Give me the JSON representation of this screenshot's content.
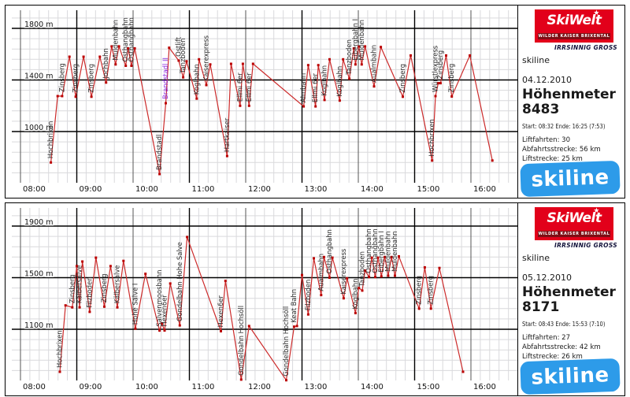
{
  "panels": [
    {
      "skiwelt_logo": {
        "name": "SkiWelt",
        "subtitle": "WILDER KAISER BRIXENTAL",
        "tagline": "IRRSINNIG GROSS",
        "star_icon": "★",
        "bg": "#e2001a"
      },
      "site_label": "skiline",
      "date": "04.12.2010",
      "hm_label": "Höhenmeter",
      "hm_value": "8483",
      "session": "Start: 08:32 Ende: 16:25 (7:53)",
      "stats": [
        "Liftfahrten: 30",
        "Abfahrtsstrecke: 56 km",
        "Liftstrecke: 25 km"
      ],
      "skiline_logo": {
        "text": "skiline",
        "bg": "#2d9be9"
      }
    },
    {
      "skiwelt_logo": {
        "name": "SkiWelt",
        "subtitle": "WILDER KAISER BRIXENTAL",
        "tagline": "IRRSINNIG GROSS",
        "star_icon": "★",
        "bg": "#e2001a"
      },
      "site_label": "skiline",
      "date": "05.12.2010",
      "hm_label": "Höhenmeter",
      "hm_value": "8171",
      "session": "Start: 08:43 Ende: 15:53 (7:10)",
      "stats": [
        "Liftfahrten: 27",
        "Abfahrtsstrecke: 42 km",
        "Liftstrecke: 26 km"
      ],
      "skiline_logo": {
        "text": "skiline",
        "bg": "#2d9be9"
      }
    }
  ],
  "chart_data": [
    {
      "type": "line",
      "title": "Höhenmeter 04.12.2010",
      "x_ticks": [
        "08:00",
        "09:00",
        "10:00",
        "11:00",
        "12:00",
        "13:00",
        "14:00",
        "15:00",
        "16:00"
      ],
      "y_ticks": [
        {
          "label": "1800 m",
          "value": 1800
        },
        {
          "label": "1400 m",
          "value": 1400
        },
        {
          "label": "1000 m",
          "value": 1000
        }
      ],
      "x_range_hours": [
        8.0,
        16.8
      ],
      "y_minor_step_m": 80,
      "x_minor_step_min": 10,
      "grid_minor": "#d9d9dc",
      "line_color": "#cc2a2a",
      "point_color": "#bb0000",
      "label_color": "#2b2b2b",
      "highlight_label_color": "#8a2be2",
      "points": [
        [
          8.54,
          760,
          "Hochbrixen"
        ],
        [
          8.66,
          1275
        ],
        [
          8.74,
          1275,
          "Zinsberg"
        ],
        [
          8.87,
          1580
        ],
        [
          8.98,
          1270,
          "Zinsberg"
        ],
        [
          9.12,
          1580
        ],
        [
          9.26,
          1270,
          "Zinsberg"
        ],
        [
          9.41,
          1580
        ],
        [
          9.52,
          1380,
          "Jochbahn"
        ],
        [
          9.62,
          1660
        ],
        [
          9.69,
          1520,
          "Muldenbahn"
        ],
        [
          9.75,
          1660
        ],
        [
          9.87,
          1510,
          "Osthangbahn"
        ],
        [
          9.91,
          1645
        ],
        [
          9.97,
          1510,
          "Osthangbahn"
        ],
        [
          10.03,
          1645
        ],
        [
          10.47,
          670,
          "Brandstadl I"
        ],
        [
          10.58,
          1220,
          "Brandstadl II",
          "#8a2be2"
        ],
        [
          10.64,
          1650
        ],
        [
          10.81,
          1550,
          "Ostlift"
        ],
        [
          10.89,
          1420,
          "Tanzboden"
        ],
        [
          10.95,
          1545
        ],
        [
          11.13,
          1255,
          "Koglbahn"
        ],
        [
          11.17,
          1560
        ],
        [
          11.3,
          1360,
          "Kaiserexpress"
        ],
        [
          11.37,
          1520
        ],
        [
          11.67,
          810,
          "Hartkaiser"
        ],
        [
          11.74,
          1525
        ],
        [
          11.9,
          1200,
          "Ellmi 6er"
        ],
        [
          11.95,
          1525
        ],
        [
          12.06,
          1200,
          "Ellmi 6er"
        ],
        [
          12.13,
          1525
        ],
        [
          13.03,
          1195,
          "Almbahn"
        ],
        [
          13.11,
          1515
        ],
        [
          13.24,
          1195,
          "Ellmi 6er"
        ],
        [
          13.29,
          1515
        ],
        [
          13.4,
          1245,
          "Koglbahn"
        ],
        [
          13.49,
          1560
        ],
        [
          13.67,
          1240,
          "Koglbahn"
        ],
        [
          13.73,
          1560
        ],
        [
          13.84,
          1410,
          "Tanzboden"
        ],
        [
          13.92,
          1645
        ],
        [
          13.95,
          1520,
          "Eibergbahn I"
        ],
        [
          14.01,
          1660
        ],
        [
          14.06,
          1520,
          "Muldenbahn"
        ],
        [
          14.12,
          1660
        ],
        [
          14.28,
          1350,
          "Aualmbahn"
        ],
        [
          14.4,
          1655
        ],
        [
          14.79,
          1270,
          "Zinsberg"
        ],
        [
          14.93,
          1590
        ],
        [
          15.31,
          775,
          "Hochbrixen"
        ],
        [
          15.37,
          1275,
          "Würstlexpress"
        ],
        [
          15.42,
          1375
        ],
        [
          15.46,
          1375,
          "Zinsberg"
        ],
        [
          15.56,
          1590
        ],
        [
          15.66,
          1272,
          "Zinsberg"
        ],
        [
          15.98,
          1590
        ],
        [
          16.38,
          775
        ]
      ]
    },
    {
      "type": "line",
      "title": "Höhenmeter 05.12.2010",
      "x_ticks": [
        "08:00",
        "09:00",
        "10:00",
        "11:00",
        "12:00",
        "13:00",
        "14:00",
        "15:00",
        "16:00"
      ],
      "y_ticks": [
        {
          "label": "1900 m",
          "value": 1900
        },
        {
          "label": "1500 m",
          "value": 1500
        },
        {
          "label": "1100 m",
          "value": 1100
        }
      ],
      "x_range_hours": [
        8.0,
        16.8
      ],
      "y_minor_step_m": 80,
      "x_minor_step_min": 10,
      "grid_minor": "#d9d9dc",
      "line_color": "#cc2a2a",
      "point_color": "#bb0000",
      "label_color": "#2b2b2b",
      "highlight_label_color": "#8a2be2",
      "points": [
        [
          8.7,
          770,
          "Hochbrixen"
        ],
        [
          8.8,
          1285
        ],
        [
          8.92,
          1270,
          "Zinsberg"
        ],
        [
          9.0,
          1590
        ],
        [
          9.05,
          1270,
          "Kälbersalve"
        ],
        [
          9.1,
          1625
        ],
        [
          9.23,
          1235,
          "Filzboden"
        ],
        [
          9.34,
          1655
        ],
        [
          9.49,
          1275,
          "Zinsberg"
        ],
        [
          9.6,
          1590
        ],
        [
          9.72,
          1270,
          "Kälbersalve"
        ],
        [
          9.83,
          1630
        ],
        [
          10.04,
          1105,
          "Hohe Salve I"
        ],
        [
          10.22,
          1530
        ],
        [
          10.47,
          1090,
          "Salvenmoosbahn"
        ],
        [
          10.51,
          1145
        ],
        [
          10.56,
          1090,
          "Hexen6er"
        ],
        [
          10.66,
          1455
        ],
        [
          10.83,
          1130,
          "Gondelbahn Hohe Salve"
        ],
        [
          10.96,
          1815
        ],
        [
          11.56,
          1085,
          "Hexen6er"
        ],
        [
          11.64,
          1475
        ],
        [
          11.92,
          710,
          "Gondelbahn Hochsöll"
        ],
        [
          12.06,
          1125
        ],
        [
          12.72,
          705,
          "Gondelbahn Hochsöll"
        ],
        [
          12.86,
          1120,
          "Keat Bahn"
        ],
        [
          12.91,
          1125
        ],
        [
          13.0,
          1520
        ],
        [
          13.11,
          1215,
          "Filzboden"
        ],
        [
          13.21,
          1650
        ],
        [
          13.34,
          1365,
          "Aualmbahn"
        ],
        [
          13.39,
          1660
        ],
        [
          13.49,
          1500,
          "Osthangbahn"
        ],
        [
          13.54,
          1655
        ],
        [
          13.74,
          1340,
          "Kaiserexpress"
        ],
        [
          13.8,
          1495
        ],
        [
          13.95,
          1225,
          "Koglbahn"
        ],
        [
          14.01,
          1420
        ],
        [
          14.07,
          1400,
          "Tanzboden"
        ],
        [
          14.12,
          1555
        ],
        [
          14.19,
          1505,
          "Osthangbahn"
        ],
        [
          14.24,
          1655
        ],
        [
          14.3,
          1505,
          "Osthangbahn"
        ],
        [
          14.35,
          1655
        ],
        [
          14.41,
          1510,
          "Eibergbahn I"
        ],
        [
          14.47,
          1660
        ],
        [
          14.53,
          1515,
          "Muldenbahn"
        ],
        [
          14.59,
          1660
        ],
        [
          14.65,
          1515,
          "Muldenbahn"
        ],
        [
          14.72,
          1665
        ],
        [
          15.08,
          1260,
          "Zinsberg"
        ],
        [
          15.18,
          1580
        ],
        [
          15.29,
          1260,
          "Zinsberg"
        ],
        [
          15.44,
          1575
        ],
        [
          15.86,
          770
        ]
      ]
    }
  ]
}
